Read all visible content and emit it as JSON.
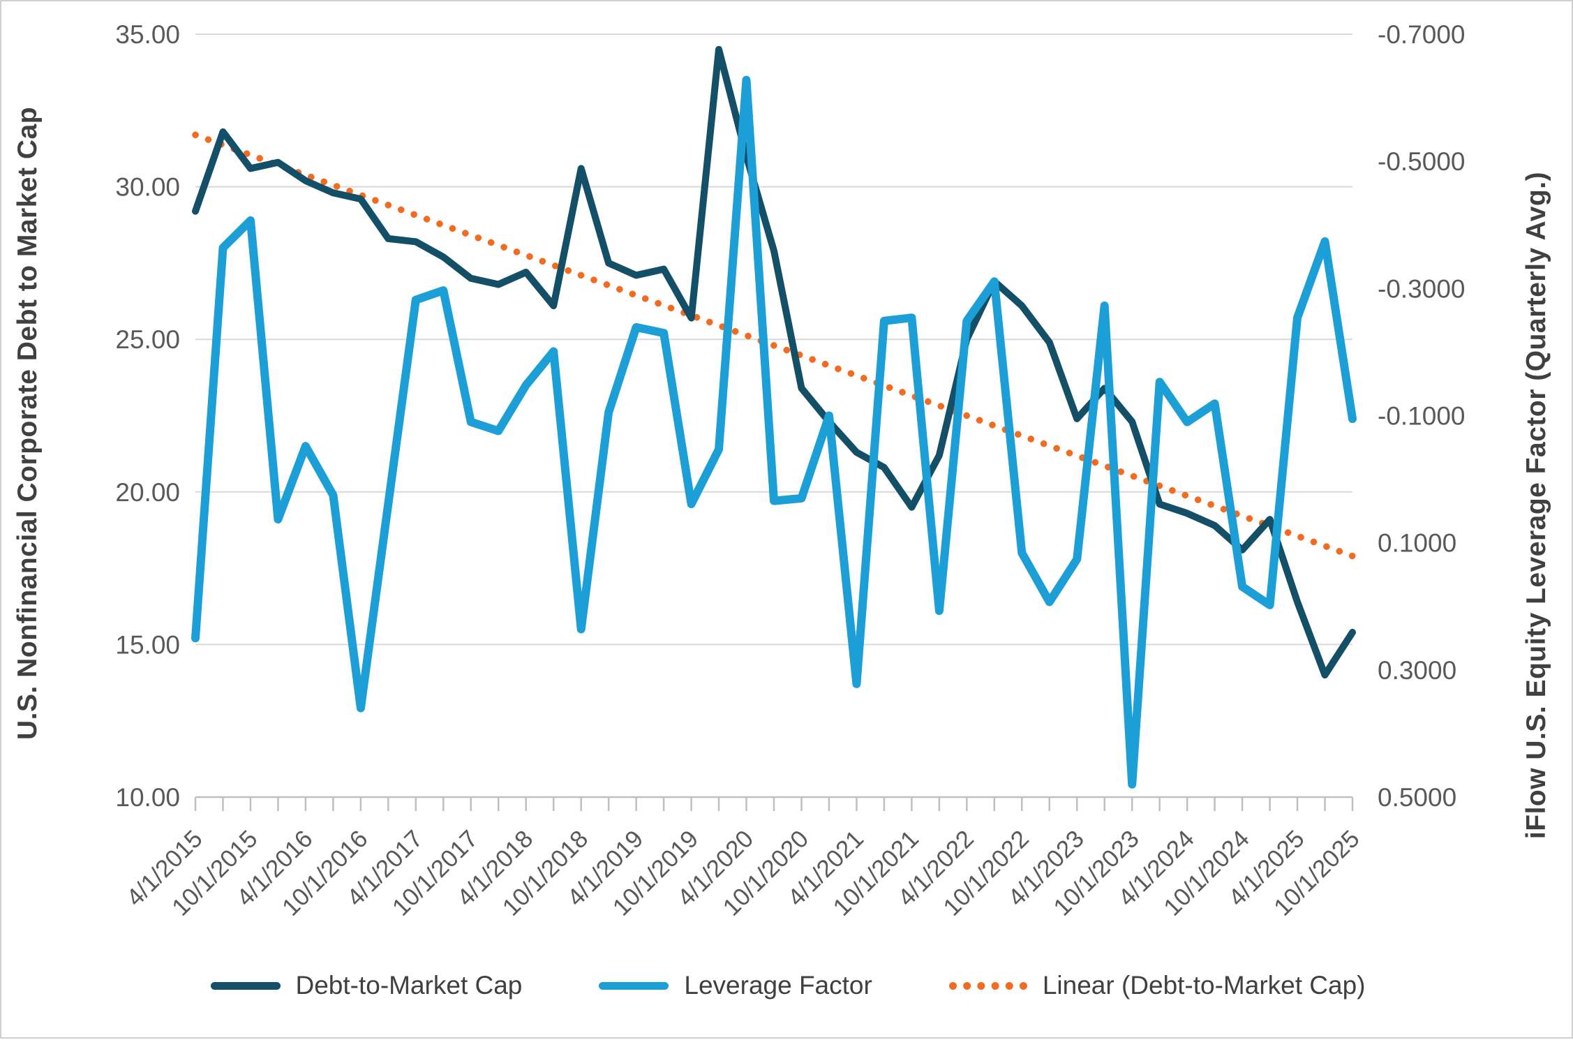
{
  "chart_data": {
    "type": "line",
    "title": "",
    "x": [
      "4/1/2015",
      "7/1/2015",
      "10/1/2015",
      "1/1/2016",
      "4/1/2016",
      "7/1/2016",
      "10/1/2016",
      "1/1/2017",
      "4/1/2017",
      "7/1/2017",
      "10/1/2017",
      "1/1/2018",
      "4/1/2018",
      "7/1/2018",
      "10/1/2018",
      "1/1/2019",
      "4/1/2019",
      "7/1/2019",
      "10/1/2019",
      "1/1/2020",
      "4/1/2020",
      "7/1/2020",
      "10/1/2020",
      "1/1/2021",
      "4/1/2021",
      "7/1/2021",
      "10/1/2021",
      "1/1/2022",
      "4/1/2022",
      "7/1/2022",
      "10/1/2022",
      "1/1/2023",
      "4/1/2023",
      "7/1/2023",
      "10/1/2023",
      "1/1/2024",
      "4/1/2024",
      "7/1/2024",
      "10/1/2024",
      "1/1/2025",
      "4/1/2025",
      "7/1/2025",
      "10/1/2025"
    ],
    "x_label_every": 2,
    "x_tick_labels": [
      "4/1/2015",
      "10/1/2015",
      "4/1/2016",
      "10/1/2016",
      "4/1/2017",
      "10/1/2017",
      "4/1/2018",
      "10/1/2018",
      "4/1/2019",
      "10/1/2019",
      "4/1/2020",
      "10/1/2020",
      "4/1/2021",
      "10/1/2021",
      "4/1/2022",
      "10/1/2022",
      "4/1/2023",
      "10/1/2023",
      "4/1/2024",
      "10/1/2024",
      "4/1/2025",
      "10/1/2025"
    ],
    "series": [
      {
        "name": "Debt-to-Market Cap",
        "axis": "left",
        "color": "#134f66",
        "stroke_width": 10,
        "values": [
          29.2,
          31.8,
          30.6,
          30.8,
          30.2,
          29.8,
          29.6,
          28.3,
          28.2,
          27.7,
          27.0,
          26.8,
          27.2,
          26.1,
          30.6,
          27.5,
          27.1,
          27.3,
          25.7,
          34.5,
          31.0,
          27.9,
          23.4,
          22.3,
          21.3,
          20.8,
          19.5,
          21.2,
          25.0,
          26.9,
          26.1,
          24.9,
          22.4,
          23.4,
          22.3,
          19.6,
          19.3,
          18.9,
          18.1,
          19.1,
          16.4,
          14.0,
          15.4
        ]
      },
      {
        "name": "Leverage Factor",
        "axis": "right",
        "color": "#1c9ed6",
        "stroke_width": 12,
        "values": [
          0.25,
          -0.364,
          -0.407,
          0.063,
          -0.052,
          0.025,
          0.36,
          0.039,
          -0.282,
          -0.297,
          -0.09,
          -0.076,
          -0.148,
          -0.201,
          0.236,
          -0.105,
          -0.239,
          -0.23,
          0.039,
          -0.047,
          -0.628,
          0.034,
          0.03,
          -0.1,
          0.322,
          -0.249,
          -0.254,
          0.207,
          -0.249,
          -0.311,
          0.116,
          0.193,
          0.126,
          -0.273,
          0.48,
          -0.153,
          -0.09,
          -0.119,
          0.169,
          0.198,
          -0.254,
          -0.374,
          -0.095
        ]
      }
    ],
    "trendline": {
      "name": "Linear (Debt-to-Market Cap)",
      "axis": "left",
      "color": "#f26b21",
      "style": "dotted",
      "start_value": 31.7,
      "end_value": 17.9
    },
    "left_axis": {
      "title": "U.S. Nonfinancial Corporate Debt to Market Cap",
      "min": 10,
      "max": 35,
      "tick_labels": [
        "35.00",
        "30.00",
        "25.00",
        "20.00",
        "15.00",
        "10.00"
      ]
    },
    "right_axis": {
      "title": "iFlow U.S. Equity Leverage Factor (Quarterly Avg.)",
      "min": -0.7,
      "max": 0.5,
      "inverted": true,
      "tick_labels": [
        "-0.7000",
        "-0.5000",
        "-0.3000",
        "-0.1000",
        "0.1000",
        "0.3000",
        "0.5000"
      ]
    },
    "grid": true,
    "legend_position": "bottom"
  },
  "legend": {
    "items": [
      {
        "label": "Debt-to-Market Cap",
        "color": "#134f66",
        "style": "solid"
      },
      {
        "label": "Leverage Factor",
        "color": "#1c9ed6",
        "style": "solid"
      },
      {
        "label": "Linear (Debt-to-Market Cap)",
        "color": "#f26b21",
        "style": "dotted"
      }
    ]
  },
  "colors": {
    "navy": "#134f66",
    "blue": "#1c9ed6",
    "orange": "#f26b21",
    "gridline": "#d9d9d9",
    "axis_line": "#bfbfbf",
    "tick_text": "#595959",
    "title_text": "#404040",
    "background": "#ffffff"
  }
}
